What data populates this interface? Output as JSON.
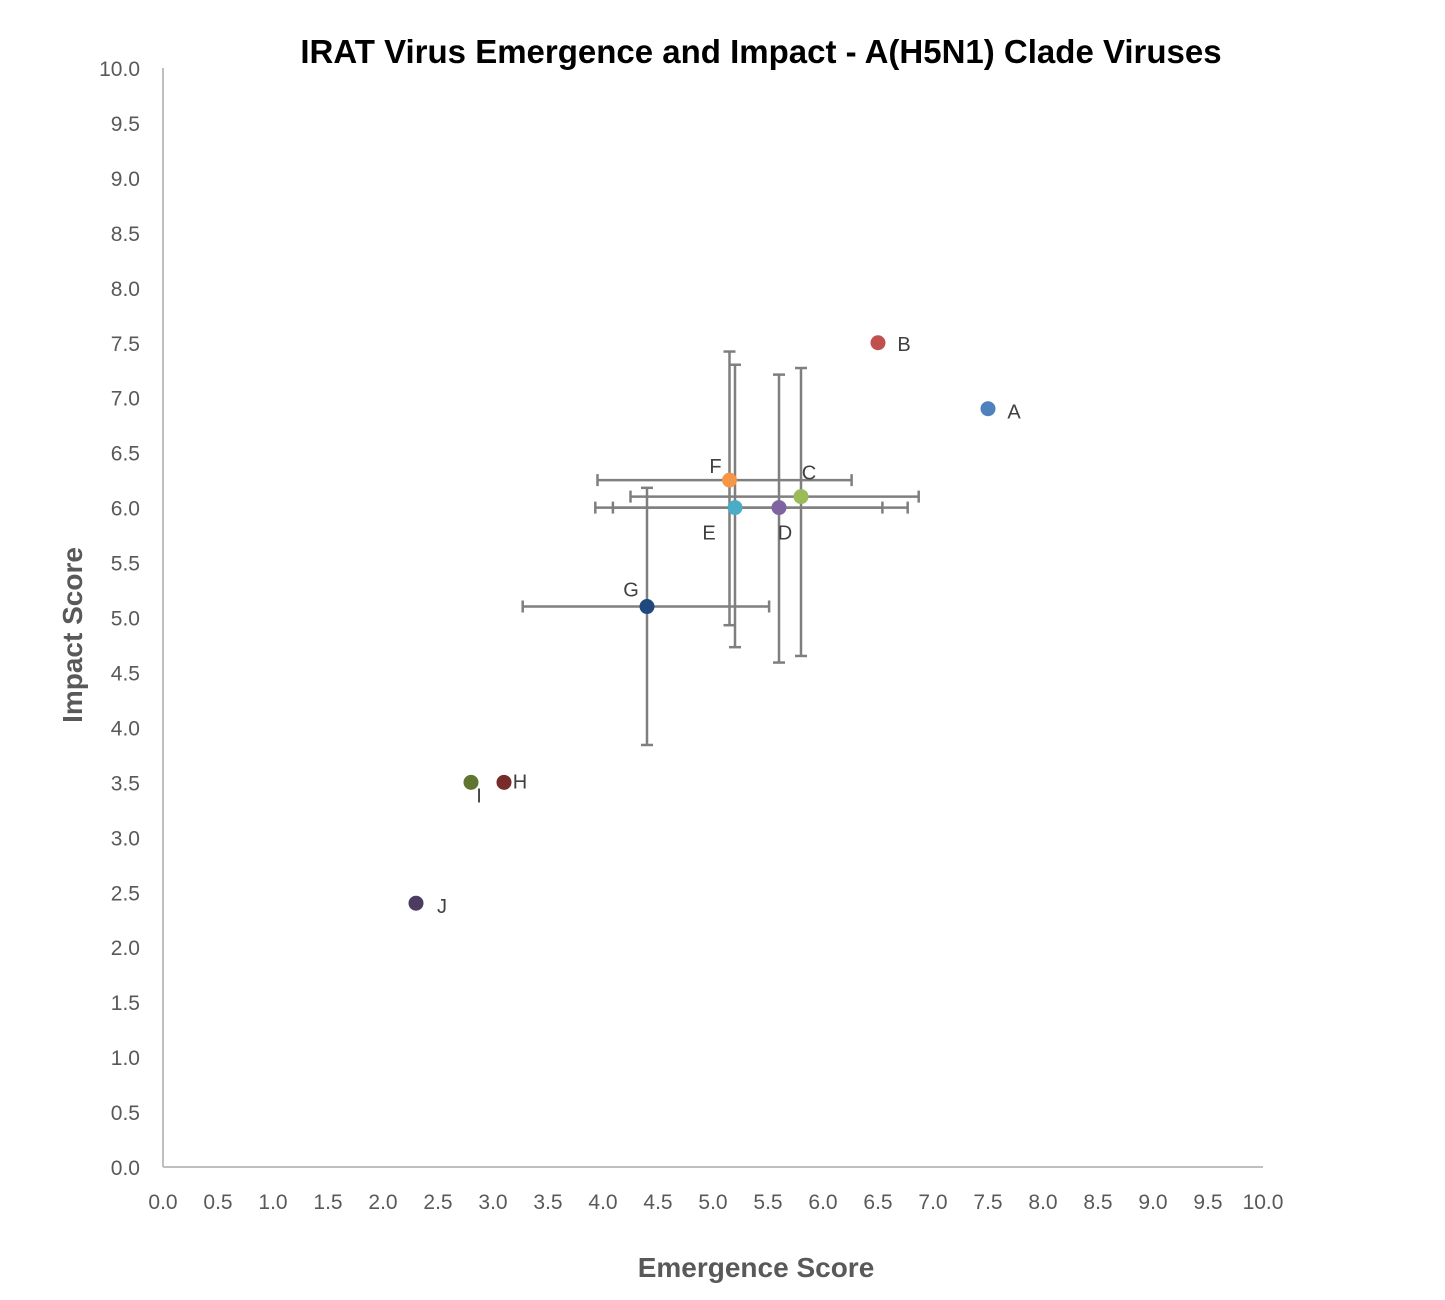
{
  "chart_data": {
    "type": "scatter",
    "title": "IRAT Virus Emergence and Impact - A(H5N1) Clade Viruses",
    "xlabel": "Emergence Score",
    "ylabel": "Impact Score",
    "xlim": [
      0,
      10
    ],
    "ylim": [
      0,
      10
    ],
    "tick_step": 0.5,
    "grid": false,
    "legend": "none",
    "error_bar_color": "#7f7f7f",
    "points": [
      {
        "label": "A",
        "x": 7.5,
        "y": 6.9,
        "color": "#4f81bd"
      },
      {
        "label": "B",
        "x": 6.5,
        "y": 7.5,
        "color": "#c0504d"
      },
      {
        "label": "C",
        "x": 5.8,
        "y": 6.1,
        "color": "#9bbb59",
        "x_err": [
          4.25,
          6.87
        ],
        "y_err": [
          4.65,
          7.27
        ]
      },
      {
        "label": "D",
        "x": 5.6,
        "y": 6.0,
        "color": "#8064a2",
        "x_err": [
          4.09,
          6.77
        ],
        "y_err": [
          4.59,
          7.21
        ]
      },
      {
        "label": "E",
        "x": 5.2,
        "y": 6.0,
        "color": "#4bacc6",
        "x_err": [
          3.93,
          6.54
        ],
        "y_err": [
          4.73,
          7.3
        ]
      },
      {
        "label": "F",
        "x": 5.15,
        "y": 6.25,
        "color": "#f79646",
        "x_err": [
          3.95,
          6.26
        ],
        "y_err": [
          4.93,
          7.42
        ]
      },
      {
        "label": "G",
        "x": 4.4,
        "y": 5.1,
        "color": "#1f497d",
        "x_err": [
          3.27,
          5.51
        ],
        "y_err": [
          3.84,
          6.18
        ]
      },
      {
        "label": "H",
        "x": 3.1,
        "y": 3.5,
        "color": "#772c2a"
      },
      {
        "label": "I",
        "x": 2.8,
        "y": 3.5,
        "color": "#5f7530"
      },
      {
        "label": "J",
        "x": 2.3,
        "y": 2.4,
        "color": "#4d3b62"
      }
    ]
  }
}
